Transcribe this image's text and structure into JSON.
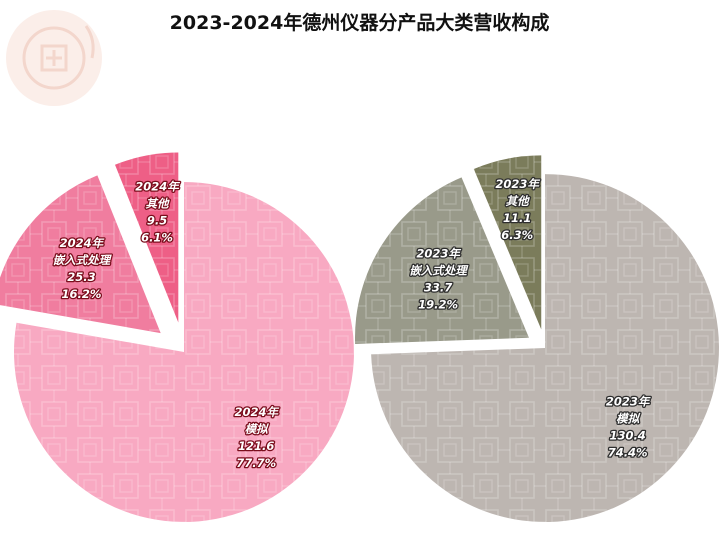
{
  "title": "2023-2024年德州仪器分产品大类营收构成",
  "chart_data": [
    {
      "type": "pie",
      "series_name": "2024年",
      "categories": [
        "模拟",
        "嵌入式处理",
        "其他"
      ],
      "values": [
        121.6,
        25.3,
        9.5
      ],
      "percents": [
        "77.7%",
        "16.2%",
        "6.1%"
      ],
      "colors": [
        "#f8a9c2",
        "#f07d9f",
        "#ee5f86"
      ],
      "exploded": [
        false,
        true,
        true
      ],
      "label_color": "#7a0d1c"
    },
    {
      "type": "pie",
      "series_name": "2023年",
      "categories": [
        "模拟",
        "嵌入式处理",
        "其他"
      ],
      "values": [
        130.4,
        33.7,
        11.1
      ],
      "percents": [
        "74.4%",
        "19.2%",
        "6.3%"
      ],
      "colors": [
        "#bdb6b1",
        "#999a8a",
        "#7b7c5b"
      ],
      "exploded": [
        false,
        true,
        true
      ],
      "label_color": "#2e2e2e"
    }
  ]
}
